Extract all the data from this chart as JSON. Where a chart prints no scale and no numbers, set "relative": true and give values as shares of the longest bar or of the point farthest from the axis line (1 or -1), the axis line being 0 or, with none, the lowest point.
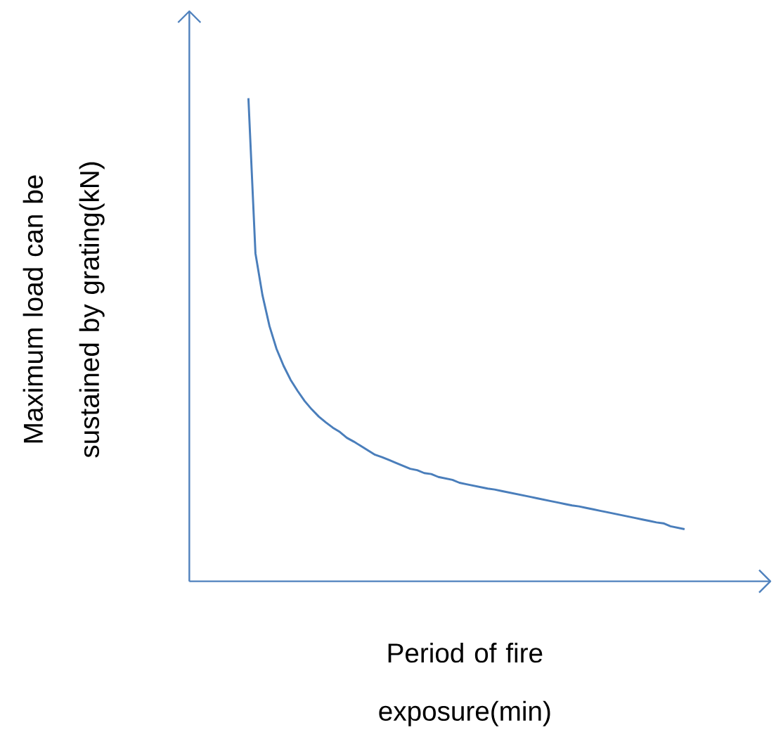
{
  "chart_data": {
    "type": "line",
    "relative": true,
    "xlabel": "Period of fire exposure(min)",
    "ylabel": "Maximum load can be sustained by grating(kN)",
    "categories": [
      null,
      null,
      null,
      null,
      null,
      null,
      null,
      null,
      null,
      null,
      null,
      null,
      null,
      null,
      null,
      null,
      null,
      null,
      null,
      null,
      null,
      null,
      null,
      null,
      null,
      null,
      null,
      null,
      null,
      null,
      null,
      null,
      null,
      null,
      null,
      null,
      null,
      null,
      null,
      null,
      null,
      null,
      null,
      null,
      null,
      null,
      null,
      null,
      null,
      null,
      null,
      null,
      null,
      null,
      null,
      null,
      null,
      null,
      null,
      null,
      null,
      null,
      null,
      null,
      null,
      null,
      null,
      null,
      null,
      null,
      null,
      null,
      null,
      null,
      null,
      null,
      null,
      null,
      null,
      null,
      null,
      null
    ],
    "series": [
      {
        "color": "#4a7ebb",
        "values": [
          null,
          null,
          null,
          null,
          null,
          null,
          null,
          null,
          1.0,
          0.679,
          0.592,
          0.528,
          0.481,
          0.446,
          0.417,
          0.394,
          0.373,
          0.356,
          0.341,
          0.329,
          0.318,
          0.309,
          0.297,
          0.289,
          0.28,
          0.271,
          0.262,
          0.257,
          0.251,
          0.245,
          0.239,
          0.233,
          0.23,
          0.224,
          0.222,
          0.216,
          0.213,
          0.21,
          0.204,
          0.201,
          0.198,
          0.195,
          0.192,
          0.19,
          0.187,
          0.184,
          0.181,
          0.178,
          0.175,
          0.172,
          0.169,
          0.166,
          0.163,
          0.16,
          0.157,
          0.155,
          0.152,
          0.149,
          0.146,
          0.143,
          0.14,
          0.137,
          0.134,
          0.131,
          0.128,
          0.125,
          0.122,
          0.12,
          0.114,
          0.111,
          0.108,
          null,
          null,
          null,
          null,
          null,
          null,
          null,
          null,
          null,
          null,
          null
        ]
      }
    ]
  }
}
